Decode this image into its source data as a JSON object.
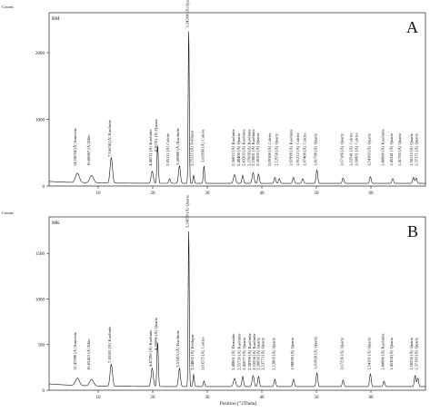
{
  "figure": {
    "ylabel": "Counts",
    "xlabel": "Position [°2Theta]"
  },
  "chart_data": [
    {
      "type": "line",
      "panel_letter": "A",
      "sample_label": "BM",
      "ylabel": "Counts",
      "xlim": [
        1,
        70
      ],
      "ylim": [
        0,
        2600
      ],
      "yticks": [
        0,
        1000,
        2000
      ],
      "xticks": [
        10,
        20,
        30,
        40,
        50,
        60
      ],
      "grid": false,
      "baseline": 40,
      "peaks": [
        {
          "x": 6.2,
          "y": 140,
          "w": 0.35
        },
        {
          "x": 8.8,
          "y": 110,
          "w": 0.35
        },
        {
          "x": 12.4,
          "y": 380,
          "w": 0.22
        },
        {
          "x": 19.9,
          "y": 180,
          "w": 0.2
        },
        {
          "x": 20.9,
          "y": 560,
          "w": 0.13
        },
        {
          "x": 23.1,
          "y": 70,
          "w": 0.15
        },
        {
          "x": 24.9,
          "y": 260,
          "w": 0.18
        },
        {
          "x": 26.6,
          "y": 2280,
          "w": 0.1
        },
        {
          "x": 27.5,
          "y": 120,
          "w": 0.12
        },
        {
          "x": 29.4,
          "y": 260,
          "w": 0.12
        },
        {
          "x": 35.0,
          "y": 130,
          "w": 0.2
        },
        {
          "x": 36.5,
          "y": 120,
          "w": 0.15
        },
        {
          "x": 38.4,
          "y": 160,
          "w": 0.18
        },
        {
          "x": 39.4,
          "y": 140,
          "w": 0.15
        },
        {
          "x": 42.4,
          "y": 90,
          "w": 0.15
        },
        {
          "x": 43.2,
          "y": 70,
          "w": 0.15
        },
        {
          "x": 45.8,
          "y": 90,
          "w": 0.15
        },
        {
          "x": 47.5,
          "y": 70,
          "w": 0.15
        },
        {
          "x": 50.1,
          "y": 200,
          "w": 0.15
        },
        {
          "x": 54.9,
          "y": 80,
          "w": 0.15
        },
        {
          "x": 59.9,
          "y": 100,
          "w": 0.15
        },
        {
          "x": 64.0,
          "y": 70,
          "w": 0.15
        },
        {
          "x": 67.8,
          "y": 90,
          "w": 0.15
        },
        {
          "x": 68.3,
          "y": 80,
          "w": 0.15
        }
      ],
      "annotations": [
        {
          "x": 6.0,
          "text": "14,18034 [Å]",
          "mineral": "Smectite"
        },
        {
          "x": 8.5,
          "text": "10,06807 [Å]",
          "mineral": "Illite"
        },
        {
          "x": 12.3,
          "text": "7,16658 [Å]",
          "mineral": "Kaolinite"
        },
        {
          "x": 19.8,
          "text": "4,46711 [Å]",
          "mineral": "Kaolinite"
        },
        {
          "x": 20.8,
          "text": "4,26701 [Å]",
          "mineral": "Quartz"
        },
        {
          "x": 23.0,
          "text": "3,85111 [Å]",
          "mineral": "Calcite"
        },
        {
          "x": 24.8,
          "text": "3,58980 [Å]",
          "mineral": "Kaolinite"
        },
        {
          "x": 26.6,
          "text": "3,34264 [Å]",
          "mineral": "Quartz"
        },
        {
          "x": 27.4,
          "text": "3,25115 [Å]",
          "mineral": "Feldspar"
        },
        {
          "x": 29.4,
          "text": "3,03390 [Å]",
          "mineral": "Calcite"
        },
        {
          "x": 35.0,
          "text": "2,56012 [Å]",
          "mineral": "Kaolinite"
        },
        {
          "x": 36.0,
          "text": "2,49400 [Å]",
          "mineral": "Quartz"
        },
        {
          "x": 36.9,
          "text": "2,43203 [Å]",
          "mineral": "Kaolinite"
        },
        {
          "x": 37.9,
          "text": "2,37669 [Å]",
          "mineral": "Kaolinite"
        },
        {
          "x": 38.7,
          "text": "2,33881 [Å]",
          "mineral": "Kaolinite"
        },
        {
          "x": 39.5,
          "text": "2,28162 [Å]",
          "mineral": "Quartz"
        },
        {
          "x": 41.7,
          "text": "2,09100 [Å]",
          "mineral": "Calcite"
        },
        {
          "x": 42.9,
          "text": "2,12558 [Å]",
          "mineral": "Quartz"
        },
        {
          "x": 45.6,
          "text": "1,97999 [Å]",
          "mineral": "Kaolinite"
        },
        {
          "x": 46.8,
          "text": "1,91212 [Å]",
          "mineral": "Calcite"
        },
        {
          "x": 48.1,
          "text": "1,87400 [Å]",
          "mineral": "Calcite"
        },
        {
          "x": 50.1,
          "text": "1,81798 [Å]",
          "mineral": "Quartz"
        },
        {
          "x": 54.9,
          "text": "1,67186 [Å]",
          "mineral": "Quartz"
        },
        {
          "x": 56.6,
          "text": "1,62541 [Å]",
          "mineral": "Calcite"
        },
        {
          "x": 57.6,
          "text": "1,60001 [Å]",
          "mineral": "Calcite"
        },
        {
          "x": 59.9,
          "text": "1,54183 [Å]",
          "mineral": "Quartz"
        },
        {
          "x": 62.4,
          "text": "1,48986 [Å]",
          "mineral": "Kaolinite"
        },
        {
          "x": 64.0,
          "text": "1,45341 [Å]",
          "mineral": "Quartz"
        },
        {
          "x": 65.5,
          "text": "1,41785 [Å]",
          "mineral": "Quartz"
        },
        {
          "x": 67.7,
          "text": "1,38112 [Å]",
          "mineral": "Quartz"
        },
        {
          "x": 68.6,
          "text": "1,37271 [Å]",
          "mineral": "Quartz"
        }
      ]
    },
    {
      "type": "line",
      "panel_letter": "B",
      "sample_label": "MK",
      "ylabel": "Counts",
      "xlabel": "Position [°2Theta]",
      "xlim": [
        1,
        70
      ],
      "ylim": [
        0,
        1900
      ],
      "yticks": [
        0,
        500,
        1000,
        1500
      ],
      "xticks": [
        10,
        20,
        30,
        40,
        50,
        60
      ],
      "grid": false,
      "baseline": 40,
      "peaks": [
        {
          "x": 6.2,
          "y": 80,
          "w": 0.35
        },
        {
          "x": 8.8,
          "y": 70,
          "w": 0.35
        },
        {
          "x": 12.4,
          "y": 240,
          "w": 0.22
        },
        {
          "x": 19.9,
          "y": 200,
          "w": 0.2
        },
        {
          "x": 20.9,
          "y": 480,
          "w": 0.13
        },
        {
          "x": 24.9,
          "y": 200,
          "w": 0.18
        },
        {
          "x": 26.6,
          "y": 1700,
          "w": 0.1
        },
        {
          "x": 27.5,
          "y": 130,
          "w": 0.12
        },
        {
          "x": 29.4,
          "y": 60,
          "w": 0.12
        },
        {
          "x": 35.0,
          "y": 90,
          "w": 0.2
        },
        {
          "x": 36.5,
          "y": 110,
          "w": 0.15
        },
        {
          "x": 38.4,
          "y": 120,
          "w": 0.18
        },
        {
          "x": 39.4,
          "y": 110,
          "w": 0.15
        },
        {
          "x": 42.4,
          "y": 80,
          "w": 0.15
        },
        {
          "x": 45.8,
          "y": 80,
          "w": 0.15
        },
        {
          "x": 50.1,
          "y": 150,
          "w": 0.15
        },
        {
          "x": 54.9,
          "y": 70,
          "w": 0.15
        },
        {
          "x": 59.9,
          "y": 140,
          "w": 0.15
        },
        {
          "x": 62.4,
          "y": 60,
          "w": 0.15
        },
        {
          "x": 68.1,
          "y": 120,
          "w": 0.15
        },
        {
          "x": 68.6,
          "y": 90,
          "w": 0.15
        }
      ],
      "annotations": [
        {
          "x": 6.0,
          "text": "12,47590 [Å]",
          "mineral": "Smectite"
        },
        {
          "x": 8.5,
          "text": "10,05415 [Å]",
          "mineral": "Illite"
        },
        {
          "x": 12.3,
          "text": "7,18181 [Å]",
          "mineral": "Kaolinite"
        },
        {
          "x": 19.8,
          "text": "4,47296 [Å]",
          "mineral": "Kaolinite"
        },
        {
          "x": 20.8,
          "text": "4,26096 [Å]",
          "mineral": "Quartz"
        },
        {
          "x": 24.8,
          "text": "3,57415 [Å]",
          "mineral": "Kaolinite"
        },
        {
          "x": 26.6,
          "text": "3,34559 [Å]",
          "mineral": "Quartz"
        },
        {
          "x": 27.5,
          "text": "3,24802 [Å]",
          "mineral": "Feldspar"
        },
        {
          "x": 29.4,
          "text": "3,03575 [Å]",
          "mineral": "Calcite"
        },
        {
          "x": 35.0,
          "text": "2,49861 [Å]",
          "mineral": "Hematite"
        },
        {
          "x": 36.1,
          "text": "2,55726 [Å]",
          "mineral": "Kaolinite"
        },
        {
          "x": 37.0,
          "text": "2,45077 [Å]",
          "mineral": "Quartz"
        },
        {
          "x": 38.0,
          "text": "2,38398 [Å]",
          "mineral": "Kaolinite"
        },
        {
          "x": 38.8,
          "text": "2,33556 [Å]",
          "mineral": "Kaolinite"
        },
        {
          "x": 39.6,
          "text": "2,28059 [Å]",
          "mineral": "Quartz"
        },
        {
          "x": 40.4,
          "text": "2,23773 [Å]",
          "mineral": "Quartz"
        },
        {
          "x": 42.4,
          "text": "2,12802 [Å]",
          "mineral": "Quartz"
        },
        {
          "x": 45.8,
          "text": "1,98039 [Å]",
          "mineral": "Quartz"
        },
        {
          "x": 50.1,
          "text": "1,81928 [Å]",
          "mineral": "Quartz"
        },
        {
          "x": 54.9,
          "text": "1,67236 [Å]",
          "mineral": "Quartz"
        },
        {
          "x": 59.9,
          "text": "1,54191 [Å]",
          "mineral": "Quartz"
        },
        {
          "x": 62.4,
          "text": "1,48986 [Å]",
          "mineral": "Kaolinite"
        },
        {
          "x": 64.0,
          "text": "1,45304 [Å]",
          "mineral": "Quartz"
        },
        {
          "x": 67.7,
          "text": "1,38226 [Å]",
          "mineral": "Quartz"
        },
        {
          "x": 68.6,
          "text": "1,37193 [Å]",
          "mineral": "Quartz"
        }
      ]
    }
  ]
}
